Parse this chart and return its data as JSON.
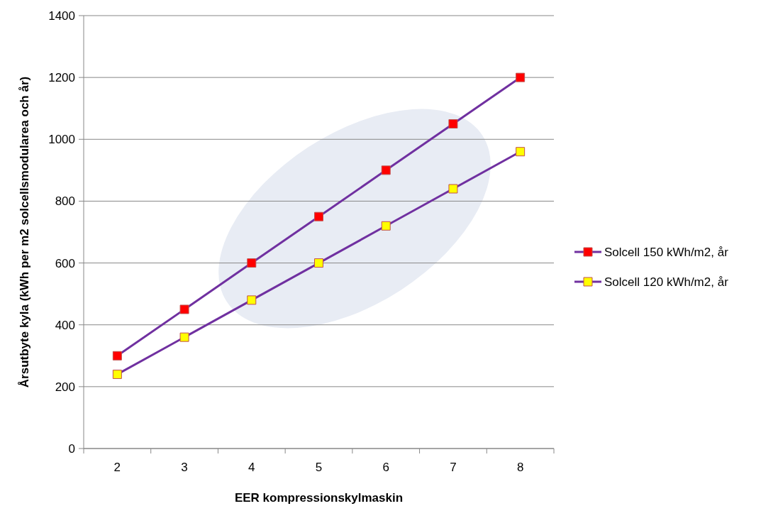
{
  "chart_data": {
    "type": "line",
    "xlabel": "EER kompressionskylmaskin",
    "ylabel": "Årsutbyte kyla (kWh per m2 solcellsmodularea och år)",
    "categories": [
      "2",
      "3",
      "4",
      "5",
      "6",
      "7",
      "8"
    ],
    "series": [
      {
        "name": "Solcell 150 kWh/m2, år",
        "color": "#ff0000",
        "values": [
          300,
          450,
          600,
          750,
          900,
          1050,
          1200
        ]
      },
      {
        "name": "Solcell 120 kWh/m2, år",
        "color": "#ffff00",
        "values": [
          240,
          360,
          480,
          600,
          720,
          840,
          960
        ]
      }
    ],
    "ylim": [
      0,
      1400
    ],
    "yticks": [
      0,
      200,
      400,
      600,
      800,
      1000,
      1200,
      1400
    ],
    "grid": "y",
    "legend": "right",
    "marker": "square",
    "line_style": "solid"
  }
}
